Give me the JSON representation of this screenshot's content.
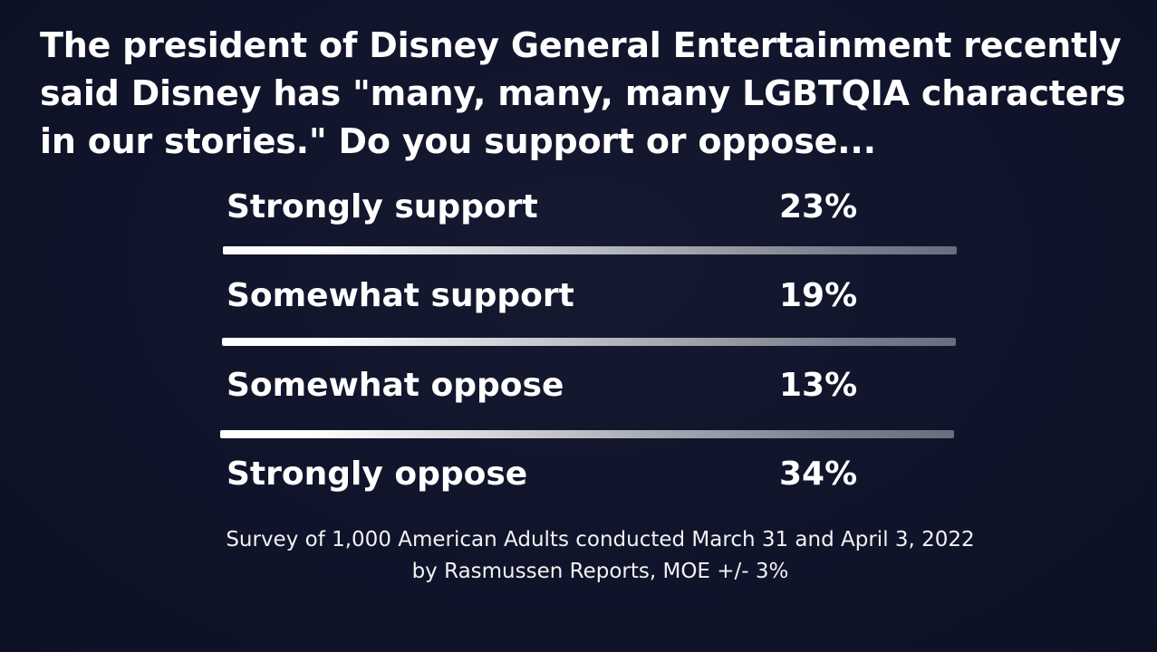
{
  "question": "The president of Disney General Entertainment recently said Disney has \"many, many, many LGBTQIA characters in our stories.\"  Do you support or oppose...",
  "chart_data": {
    "type": "table",
    "rows": [
      {
        "label": "Strongly support",
        "value_text": "23%",
        "value": 23
      },
      {
        "label": "Somewhat support",
        "value_text": "19%",
        "value": 19
      },
      {
        "label": "Somewhat oppose",
        "value_text": "13%",
        "value": 13
      },
      {
        "label": "Strongly oppose",
        "value_text": "34%",
        "value": 34
      }
    ]
  },
  "footnote": {
    "line1": "Survey of 1,000 American Adults conducted March 31 and April 3, 2022",
    "line2": "by Rasmussen Reports, MOE +/- 3%"
  }
}
